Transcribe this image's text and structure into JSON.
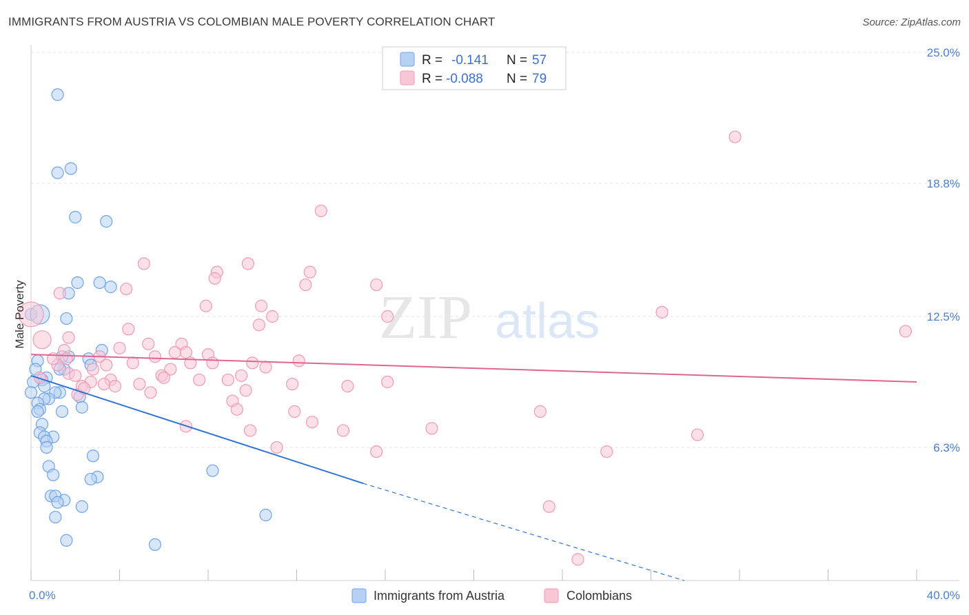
{
  "header": {
    "title": "IMMIGRANTS FROM AUSTRIA VS COLOMBIAN MALE POVERTY CORRELATION CHART",
    "source": "Source: ZipAtlas.com"
  },
  "watermark": {
    "zip": "ZIP",
    "atlas": "atlas"
  },
  "chart_data": {
    "type": "scatter",
    "ylabel": "Male Poverty",
    "xlim": [
      0,
      40
    ],
    "ylim": [
      0,
      25
    ],
    "x_tick_labels": [
      "0.0%",
      "40.0%"
    ],
    "y_ticks": [
      6.3,
      12.5,
      18.8,
      25.0
    ],
    "y_tick_labels": [
      "6.3%",
      "12.5%",
      "18.8%",
      "25.0%"
    ],
    "grid": true,
    "legend_position": "top-center",
    "series": [
      {
        "name": "Immigrants from Austria",
        "color": "#6fa3e8",
        "fill": "#b7d1f3",
        "r_label": "R =",
        "r_value": "-0.141",
        "n_label": "N =",
        "n_value": "57",
        "trend": {
          "x0": 0,
          "y0": 9.7,
          "x1": 15,
          "y1": 4.6,
          "dash_x1": 29.5,
          "dash_y1": 0
        },
        "points": [
          [
            1.2,
            23.0
          ],
          [
            1.8,
            19.5
          ],
          [
            1.2,
            19.3
          ],
          [
            2.0,
            17.2
          ],
          [
            3.4,
            17.0
          ],
          [
            2.1,
            14.1
          ],
          [
            3.1,
            14.1
          ],
          [
            3.6,
            13.9
          ],
          [
            1.7,
            13.6
          ],
          [
            1.6,
            12.4
          ],
          [
            0.0,
            12.6
          ],
          [
            3.2,
            10.9
          ],
          [
            1.7,
            10.6
          ],
          [
            1.4,
            10.6
          ],
          [
            2.6,
            10.5
          ],
          [
            0.3,
            10.4
          ],
          [
            2.7,
            10.2
          ],
          [
            1.5,
            10.0
          ],
          [
            1.3,
            10.0
          ],
          [
            0.2,
            10.0
          ],
          [
            0.7,
            9.6
          ],
          [
            0.5,
            9.5
          ],
          [
            0.1,
            9.4
          ],
          [
            0.6,
            9.2
          ],
          [
            1.3,
            8.9
          ],
          [
            1.1,
            8.9
          ],
          [
            0.0,
            8.9
          ],
          [
            2.2,
            8.7
          ],
          [
            0.8,
            8.6
          ],
          [
            0.6,
            8.6
          ],
          [
            0.3,
            8.4
          ],
          [
            2.3,
            8.2
          ],
          [
            0.4,
            8.1
          ],
          [
            1.4,
            8.0
          ],
          [
            0.3,
            8.0
          ],
          [
            0.5,
            7.4
          ],
          [
            0.4,
            7.0
          ],
          [
            1.0,
            6.8
          ],
          [
            0.6,
            6.8
          ],
          [
            0.7,
            6.6
          ],
          [
            0.7,
            6.3
          ],
          [
            2.8,
            5.9
          ],
          [
            8.2,
            5.2
          ],
          [
            0.8,
            5.4
          ],
          [
            1.0,
            5.0
          ],
          [
            3.0,
            4.9
          ],
          [
            2.7,
            4.8
          ],
          [
            0.9,
            4.0
          ],
          [
            1.1,
            4.0
          ],
          [
            1.5,
            3.8
          ],
          [
            1.2,
            3.7
          ],
          [
            2.3,
            3.5
          ],
          [
            10.6,
            3.1
          ],
          [
            1.1,
            3.0
          ],
          [
            5.6,
            1.7
          ],
          [
            1.6,
            1.9
          ],
          [
            0.4,
            12.6
          ]
        ]
      },
      {
        "name": "Colombians",
        "color": "#ef9ab5",
        "fill": "#f8c7d6",
        "r_label": "R =",
        "r_value": "-0.088",
        "n_label": "N =",
        "n_value": "79",
        "trend": {
          "x0": 0,
          "y0": 10.7,
          "x1": 40,
          "y1": 9.4
        },
        "points": [
          [
            0.0,
            12.6
          ],
          [
            0.5,
            11.4
          ],
          [
            31.8,
            21.0
          ],
          [
            13.1,
            17.5
          ],
          [
            5.1,
            15.0
          ],
          [
            9.8,
            15.0
          ],
          [
            12.6,
            14.6
          ],
          [
            8.4,
            14.6
          ],
          [
            8.3,
            14.3
          ],
          [
            15.6,
            14.0
          ],
          [
            12.4,
            14.0
          ],
          [
            4.3,
            13.8
          ],
          [
            1.3,
            13.6
          ],
          [
            10.4,
            13.0
          ],
          [
            7.9,
            13.0
          ],
          [
            10.9,
            12.5
          ],
          [
            16.1,
            12.5
          ],
          [
            28.5,
            12.7
          ],
          [
            39.5,
            11.8
          ],
          [
            10.3,
            12.1
          ],
          [
            4.4,
            11.9
          ],
          [
            1.7,
            11.5
          ],
          [
            6.8,
            11.2
          ],
          [
            5.3,
            11.2
          ],
          [
            4.0,
            11.0
          ],
          [
            1.5,
            10.9
          ],
          [
            7.0,
            10.8
          ],
          [
            6.5,
            10.8
          ],
          [
            8.0,
            10.7
          ],
          [
            5.6,
            10.6
          ],
          [
            3.1,
            10.6
          ],
          [
            1.6,
            10.5
          ],
          [
            12.1,
            10.4
          ],
          [
            10.0,
            10.3
          ],
          [
            8.2,
            10.3
          ],
          [
            7.2,
            10.3
          ],
          [
            4.6,
            10.3
          ],
          [
            1.2,
            10.2
          ],
          [
            3.4,
            10.2
          ],
          [
            10.6,
            10.1
          ],
          [
            6.3,
            10.0
          ],
          [
            2.8,
            10.0
          ],
          [
            1.7,
            9.8
          ],
          [
            5.9,
            9.7
          ],
          [
            2.0,
            9.7
          ],
          [
            9.5,
            9.7
          ],
          [
            6.0,
            9.6
          ],
          [
            8.9,
            9.5
          ],
          [
            7.6,
            9.5
          ],
          [
            3.6,
            9.5
          ],
          [
            2.7,
            9.4
          ],
          [
            16.1,
            9.4
          ],
          [
            11.8,
            9.3
          ],
          [
            4.9,
            9.3
          ],
          [
            3.3,
            9.3
          ],
          [
            3.8,
            9.2
          ],
          [
            14.3,
            9.2
          ],
          [
            2.3,
            9.2
          ],
          [
            9.7,
            9.0
          ],
          [
            5.4,
            8.9
          ],
          [
            2.1,
            8.8
          ],
          [
            9.1,
            8.5
          ],
          [
            9.3,
            8.1
          ],
          [
            11.9,
            8.0
          ],
          [
            23.0,
            8.0
          ],
          [
            12.7,
            7.5
          ],
          [
            18.1,
            7.2
          ],
          [
            9.9,
            7.1
          ],
          [
            14.1,
            7.1
          ],
          [
            7.0,
            7.3
          ],
          [
            30.1,
            6.9
          ],
          [
            11.1,
            6.3
          ],
          [
            15.6,
            6.1
          ],
          [
            26.0,
            6.1
          ],
          [
            23.4,
            3.5
          ],
          [
            24.7,
            1.0
          ],
          [
            0.4,
            9.6
          ],
          [
            1.0,
            10.5
          ],
          [
            2.4,
            9.1
          ]
        ]
      }
    ]
  }
}
